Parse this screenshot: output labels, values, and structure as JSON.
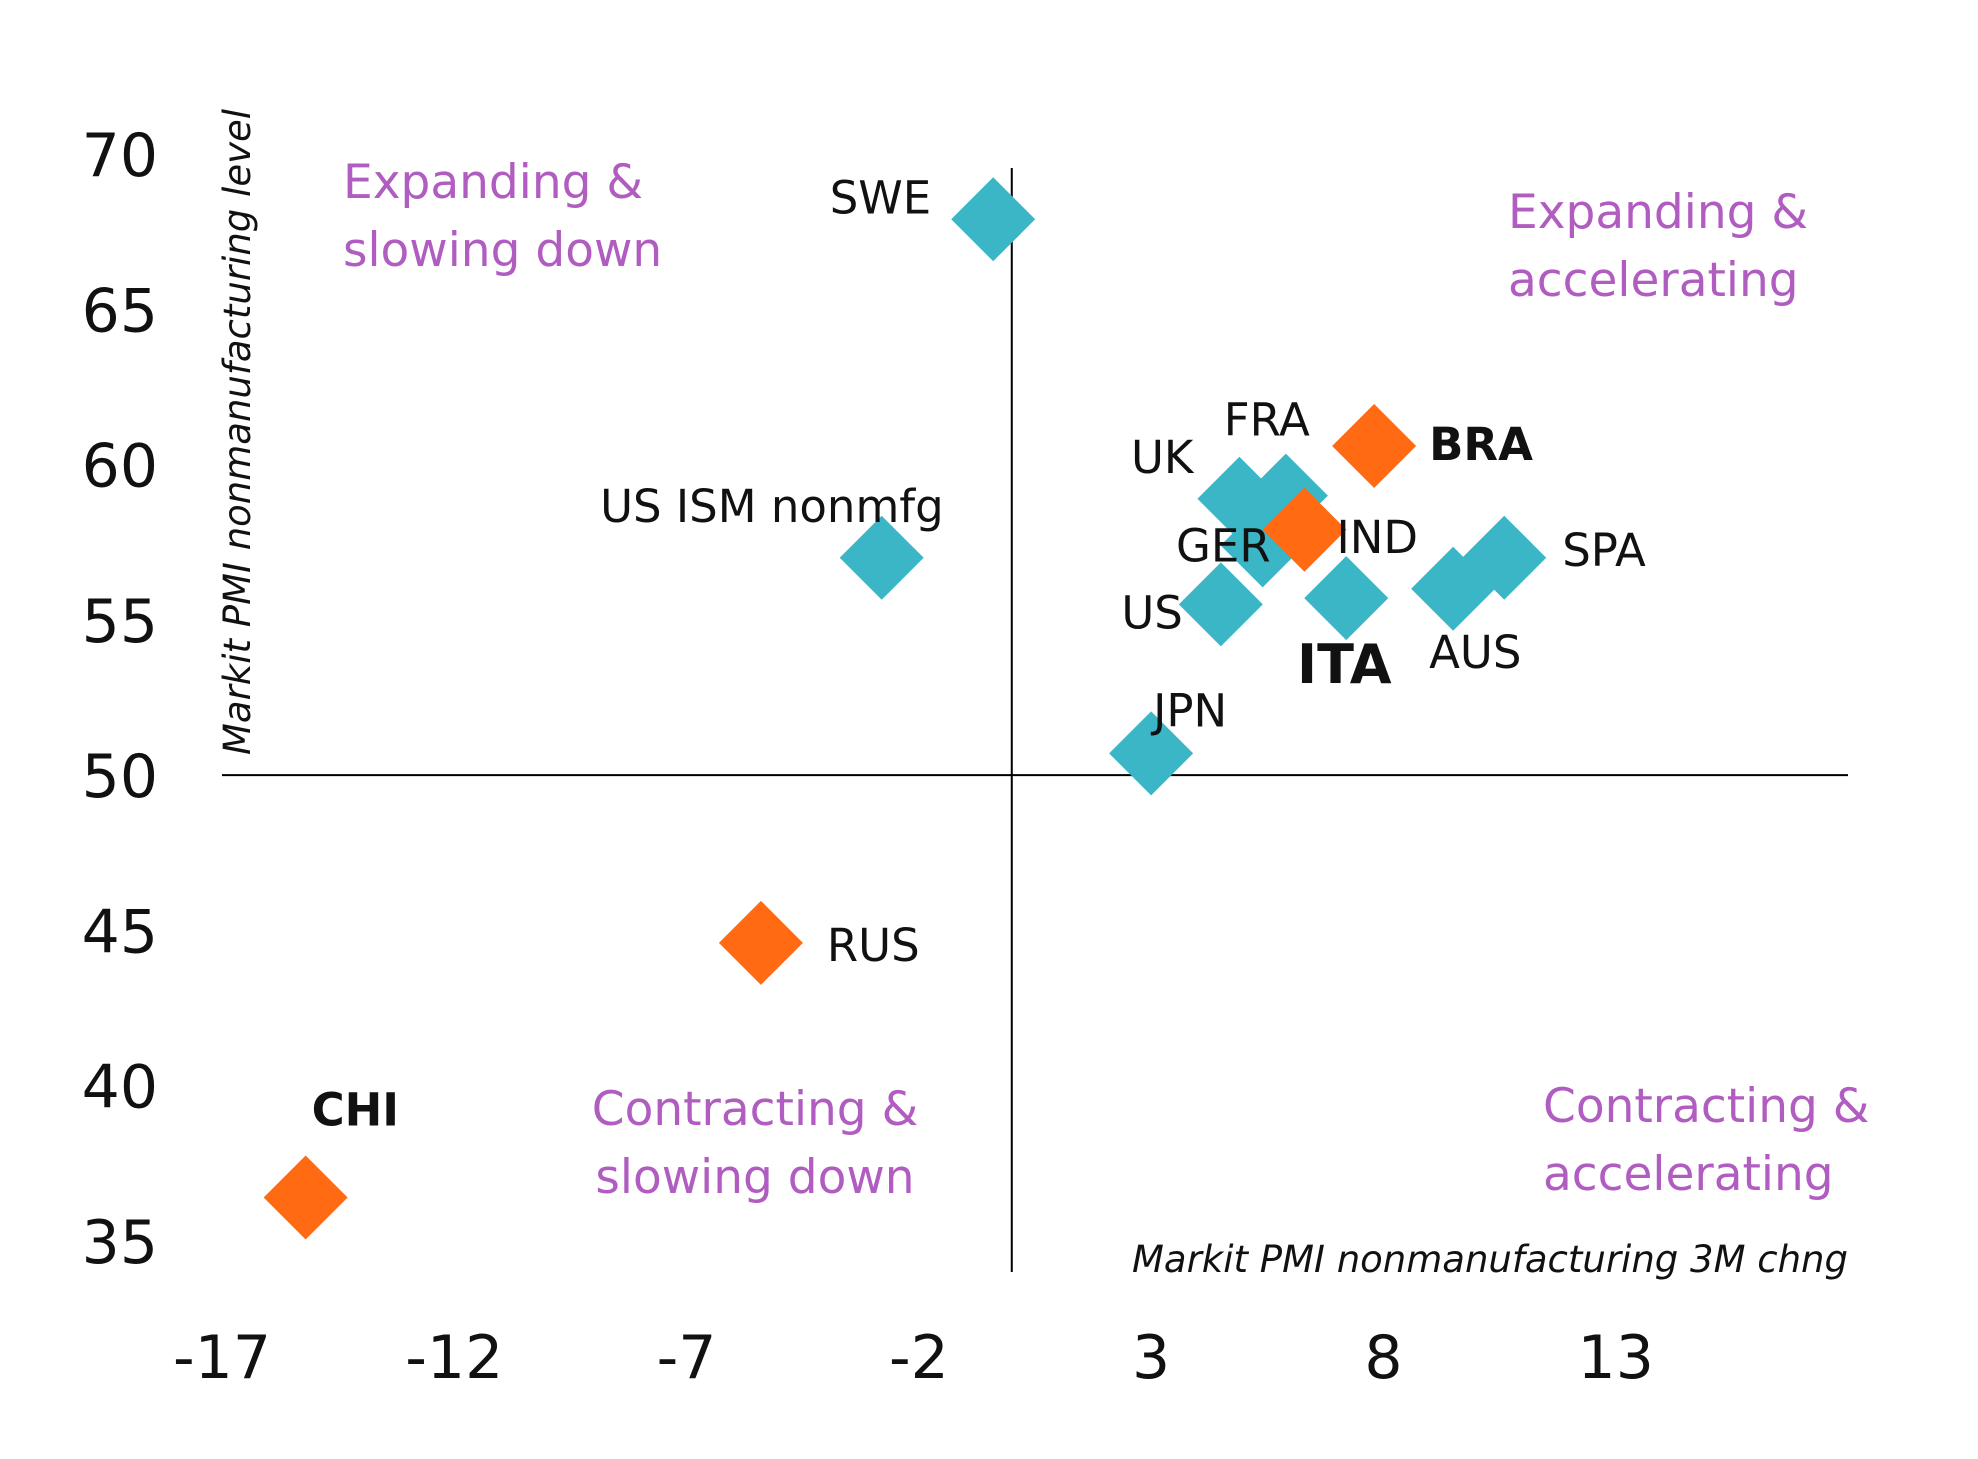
{
  "chart_data": {
    "type": "scatter",
    "xlabel": "Markit PMI nonmanufacturing 3M chng",
    "ylabel": "Markit PMI nonmanufacturing level",
    "xlim": [
      -17,
      18
    ],
    "ylim": [
      34,
      71
    ],
    "x_ticks": [
      "-17",
      "-12",
      "-7",
      "-2",
      "3",
      "8",
      "13"
    ],
    "y_ticks": [
      "70",
      "65",
      "60",
      "55",
      "50",
      "45",
      "40",
      "35"
    ],
    "x_cross": 0,
    "y_cross": 50,
    "grid": false,
    "legend": "none",
    "colors": {
      "developed": "#3bb6c7",
      "emerging": "#ff6a13",
      "quadrant_text": "#b05cc0"
    },
    "quadrants": [
      {
        "name": "top-left",
        "lines": [
          "Expanding &",
          "slowing down"
        ]
      },
      {
        "name": "top-right",
        "lines": [
          "Expanding &",
          "accelerating"
        ]
      },
      {
        "name": "bottom-left",
        "lines": [
          "Contracting &",
          "slowing down"
        ]
      },
      {
        "name": "bottom-right",
        "lines": [
          "Contracting &",
          "accelerating"
        ]
      }
    ],
    "points": [
      {
        "label": "SWE",
        "x": -0.4,
        "y": 67.9,
        "group": "developed",
        "bold": false
      },
      {
        "label": "US ISM nonmfg",
        "x": -2.8,
        "y": 57.0,
        "group": "developed",
        "bold": false
      },
      {
        "label": "UK",
        "x": 4.9,
        "y": 58.9,
        "group": "developed",
        "bold": false
      },
      {
        "label": "FRA",
        "x": 5.9,
        "y": 59.0,
        "group": "developed",
        "bold": false
      },
      {
        "label": "GER",
        "x": 5.4,
        "y": 57.4,
        "group": "developed",
        "bold": false
      },
      {
        "label": "US",
        "x": 4.5,
        "y": 55.5,
        "group": "developed",
        "bold": false
      },
      {
        "label": "ITA",
        "x": 7.2,
        "y": 55.7,
        "group": "developed",
        "bold": true
      },
      {
        "label": "AUS",
        "x": 9.5,
        "y": 56.0,
        "group": "developed",
        "bold": false
      },
      {
        "label": "SPA",
        "x": 10.6,
        "y": 57.0,
        "group": "developed",
        "bold": false
      },
      {
        "label": "JPN",
        "x": 3.0,
        "y": 50.7,
        "group": "developed",
        "bold": false
      },
      {
        "label": "IND",
        "x": 6.3,
        "y": 57.9,
        "group": "emerging",
        "bold": false
      },
      {
        "label": "BRA",
        "x": 7.8,
        "y": 60.6,
        "group": "emerging",
        "bold": true
      },
      {
        "label": "RUS",
        "x": -5.4,
        "y": 44.6,
        "group": "emerging",
        "bold": false
      },
      {
        "label": "CHI",
        "x": -15.2,
        "y": 36.4,
        "group": "emerging",
        "bold": true
      }
    ]
  }
}
